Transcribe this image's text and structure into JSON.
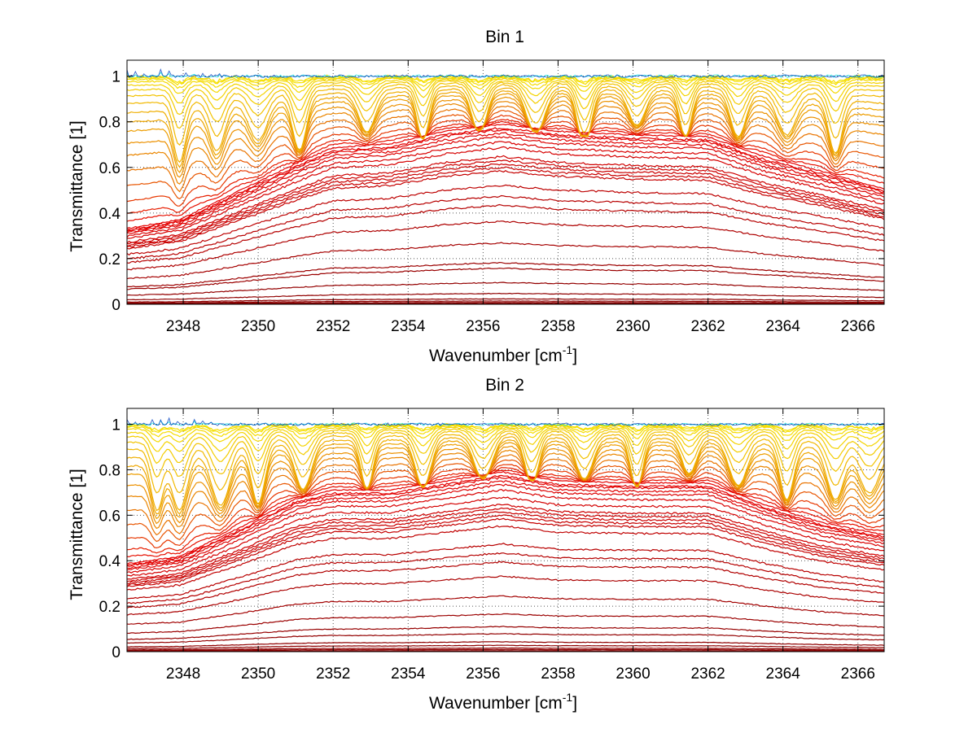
{
  "chart_data": [
    {
      "type": "line",
      "title": "Bin 1",
      "xlabel": "Wavenumber [cm",
      "xlabel_sup": "-1",
      "xlabel_end": "]",
      "ylabel": "Transmittance [1]",
      "xlim": [
        2346.5,
        2366.7
      ],
      "ylim": [
        0,
        1.07
      ],
      "xticks": [
        2348,
        2350,
        2352,
        2354,
        2356,
        2358,
        2360,
        2362,
        2364,
        2366
      ],
      "xtick_labels": [
        "2348",
        "2350",
        "2352",
        "2354",
        "2356",
        "2358",
        "2360",
        "2362",
        "2364",
        "2366"
      ],
      "yticks": [
        0,
        0.2,
        0.4,
        0.6,
        0.8,
        1
      ],
      "ytick_labels": [
        "0",
        "0.2",
        "0.4",
        "0.6",
        "0.8",
        "1"
      ],
      "grid": "dotted",
      "colormap": "jet",
      "absorption_lines": [
        2347.9,
        2348.9,
        2350.0,
        2351.1,
        2352.9,
        2354.4,
        2355.9,
        2357.4,
        2358.7,
        2360.1,
        2361.4,
        2362.8,
        2364.1,
        2365.4
      ],
      "envelope_x": [
        2346.5,
        2347.9,
        2349.5,
        2351.0,
        2352.0,
        2353.5,
        2355.0,
        2356.5,
        2358.0,
        2360.0,
        2362.0,
        2363.5,
        2365.0,
        2366.7
      ],
      "envelope_shape": [
        0.42,
        0.47,
        0.63,
        0.78,
        0.87,
        0.89,
        0.96,
        1.0,
        0.96,
        0.94,
        0.93,
        0.82,
        0.74,
        0.64
      ],
      "series_scale": [
        0.0,
        0.004,
        0.01,
        0.018,
        0.03,
        0.06,
        0.12,
        0.2,
        0.23,
        0.34,
        0.46,
        0.55,
        0.6,
        0.66,
        0.74,
        0.76,
        0.78,
        0.8,
        0.82,
        0.87,
        0.9,
        0.93,
        0.95,
        0.97,
        0.98
      ],
      "series_depth": [
        1.0,
        0.95,
        0.9,
        0.82,
        0.72,
        0.62,
        0.52,
        0.44,
        0.36,
        0.3,
        0.24,
        0.18,
        0.13,
        0.09,
        0.06,
        0.035,
        0.02,
        0.01,
        0.005
      ],
      "colors": {
        "dark_red": "#8b0000",
        "red": "#e60000",
        "orange": "#e97a00",
        "yellow_orange": "#f0b400",
        "yellow": "#f5e000",
        "cyan": "#00e0e0",
        "blue": "#0040c0",
        "grid": "#555555"
      }
    },
    {
      "type": "line",
      "title": "Bin 2",
      "xlabel": "Wavenumber [cm",
      "xlabel_sup": "-1",
      "xlabel_end": "]",
      "ylabel": "Transmittance [1]",
      "xlim": [
        2346.5,
        2366.7
      ],
      "ylim": [
        0,
        1.07
      ],
      "xticks": [
        2348,
        2350,
        2352,
        2354,
        2356,
        2358,
        2360,
        2362,
        2364,
        2366
      ],
      "xtick_labels": [
        "2348",
        "2350",
        "2352",
        "2354",
        "2356",
        "2358",
        "2360",
        "2362",
        "2364",
        "2366"
      ],
      "yticks": [
        0,
        0.2,
        0.4,
        0.6,
        0.8,
        1
      ],
      "ytick_labels": [
        "0",
        "0.2",
        "0.4",
        "0.6",
        "0.8",
        "1"
      ],
      "grid": "dotted",
      "colormap": "jet",
      "absorption_lines": [
        2347.3,
        2347.9,
        2349.0,
        2350.0,
        2351.2,
        2352.9,
        2354.4,
        2356.0,
        2357.3,
        2358.7,
        2360.1,
        2361.5,
        2362.8,
        2364.1,
        2365.4,
        2366.3
      ],
      "envelope_x": [
        2346.5,
        2347.9,
        2349.5,
        2351.0,
        2352.0,
        2353.5,
        2355.0,
        2356.5,
        2358.0,
        2360.0,
        2362.0,
        2363.5,
        2365.0,
        2366.7
      ],
      "envelope_shape": [
        0.49,
        0.53,
        0.69,
        0.85,
        0.9,
        0.9,
        0.95,
        1.0,
        0.95,
        0.94,
        0.94,
        0.82,
        0.72,
        0.65
      ],
      "series_scale": [
        0.0,
        0.005,
        0.012,
        0.02,
        0.035,
        0.055,
        0.1,
        0.14,
        0.21,
        0.31,
        0.42,
        0.5,
        0.55,
        0.6,
        0.7,
        0.74,
        0.76,
        0.78,
        0.8,
        0.82,
        0.86,
        0.9,
        0.93,
        0.95,
        0.97,
        0.98
      ],
      "series_depth": [
        1.0,
        0.95,
        0.9,
        0.82,
        0.72,
        0.62,
        0.52,
        0.44,
        0.36,
        0.3,
        0.24,
        0.18,
        0.13,
        0.09,
        0.06,
        0.035,
        0.02,
        0.01,
        0.005
      ],
      "colors": {
        "dark_red": "#8b0000",
        "red": "#e60000",
        "orange": "#e97a00",
        "yellow_orange": "#f0b400",
        "yellow": "#f5e000",
        "cyan": "#00e0e0",
        "blue": "#0040c0",
        "grid": "#555555"
      }
    }
  ]
}
